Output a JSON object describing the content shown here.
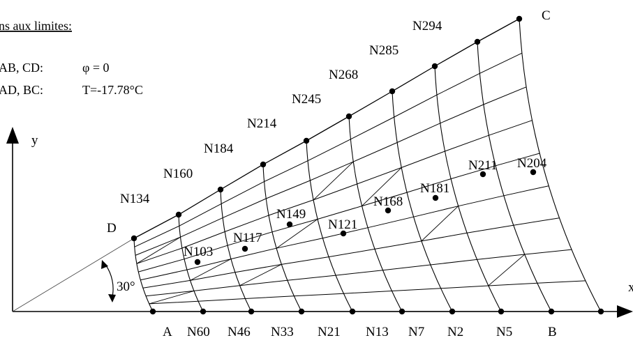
{
  "boundary_conditions": {
    "title": "ns aux limites:",
    "rows": [
      {
        "edges": "AB, CD:",
        "condition": "φ = 0"
      },
      {
        "edges": "AD, BC:",
        "condition": "T=-17.78°C"
      }
    ]
  },
  "axes": {
    "x_label": "x",
    "y_label": "y"
  },
  "angle_label": "30°",
  "corner_labels": {
    "A": "A",
    "B": "B",
    "C": "C",
    "D": "D"
  },
  "bottom_nodes": [
    "N60",
    "N46",
    "N33",
    "N21",
    "N13",
    "N7",
    "N2",
    "N5"
  ],
  "outer_nodes": [
    "N134",
    "N160",
    "N184",
    "N214",
    "N245",
    "N268",
    "N285",
    "N294"
  ],
  "interior_nodes": [
    "N103",
    "N117",
    "N149",
    "N121",
    "N168",
    "N181",
    "N211",
    "N204"
  ],
  "colors": {
    "line": "#000000",
    "background": "#ffffff"
  }
}
